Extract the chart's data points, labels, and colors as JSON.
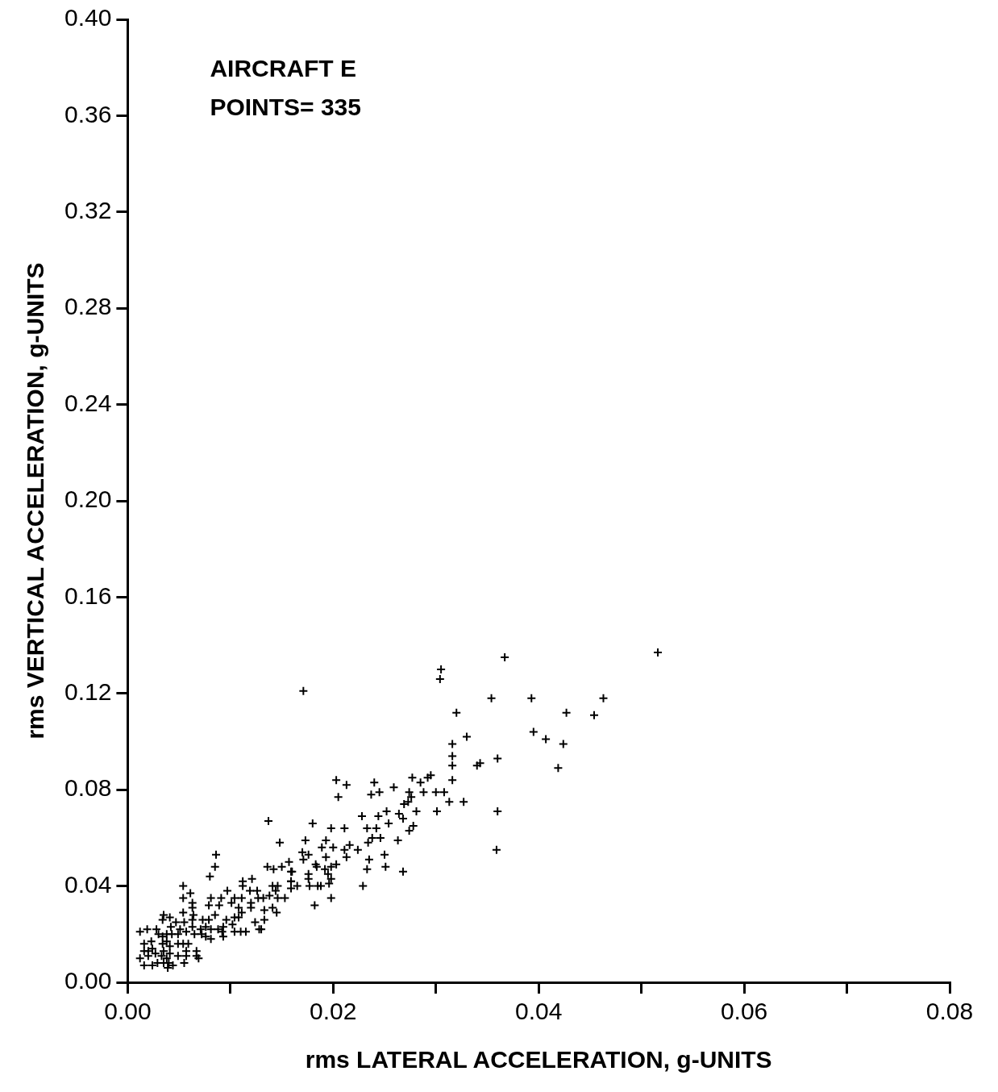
{
  "chart_data": {
    "type": "scatter",
    "xlabel": "rms LATERAL ACCELERATION, g-UNITS",
    "ylabel": "rms VERTICAL ACCELERATION, g-UNITS",
    "annotations": [
      "AIRCRAFT E",
      "POINTS= 335"
    ],
    "xlim": [
      0,
      0.08
    ],
    "ylim": [
      0,
      0.4
    ],
    "xticks": [
      {
        "value": 0,
        "label": "0.00"
      },
      {
        "value": 0.01,
        "label": null
      },
      {
        "value": 0.02,
        "label": "0.02"
      },
      {
        "value": 0.03,
        "label": null
      },
      {
        "value": 0.04,
        "label": "0.04"
      },
      {
        "value": 0.05,
        "label": null
      },
      {
        "value": 0.06,
        "label": "0.06"
      },
      {
        "value": 0.07,
        "label": null
      },
      {
        "value": 0.08,
        "label": "0.08"
      }
    ],
    "yticks": [
      {
        "value": 0,
        "label": "0.00"
      },
      {
        "value": 0.04,
        "label": "0.04"
      },
      {
        "value": 0.08,
        "label": "0.08"
      },
      {
        "value": 0.12,
        "label": "0.12"
      },
      {
        "value": 0.16,
        "label": "0.16"
      },
      {
        "value": 0.2,
        "label": "0.20"
      },
      {
        "value": 0.24,
        "label": "0.24"
      },
      {
        "value": 0.28,
        "label": "0.28"
      },
      {
        "value": 0.32,
        "label": "0.32"
      },
      {
        "value": 0.36,
        "label": "0.36"
      },
      {
        "value": 0.4,
        "label": "0.40"
      }
    ],
    "grid": false,
    "legend": false,
    "marker": "cross",
    "series": [
      {
        "color": "#000000",
        "x": [
          0.0367,
          0.0516,
          0.0305,
          0.0304,
          0.0354,
          0.0393,
          0.0463,
          0.032,
          0.0427,
          0.0454,
          0.033,
          0.0395,
          0.0407,
          0.0424,
          0.0316,
          0.0316,
          0.0316,
          0.034,
          0.0343,
          0.036,
          0.0419,
          0.0316,
          0.0277,
          0.0285,
          0.0292,
          0.0295,
          0.0171,
          0.0359,
          0.036,
          0.0327,
          0.0313,
          0.0301,
          0.03,
          0.0203,
          0.0213,
          0.0205,
          0.024,
          0.0237,
          0.0245,
          0.0259,
          0.0274,
          0.0288,
          0.0308,
          0.0276,
          0.0269,
          0.0273,
          0.0281,
          0.0252,
          0.0264,
          0.0228,
          0.0244,
          0.0268,
          0.0254,
          0.0278,
          0.0274,
          0.0233,
          0.0242,
          0.018,
          0.0198,
          0.0211,
          0.0238,
          0.0246,
          0.0173,
          0.0193,
          0.0263,
          0.0234,
          0.0216,
          0.0189,
          0.02,
          0.0224,
          0.017,
          0.0211,
          0.0176,
          0.0213,
          0.0193,
          0.025,
          0.0235,
          0.0171,
          0.0157,
          0.0183,
          0.0184,
          0.0192,
          0.0198,
          0.0203,
          0.0251,
          0.0233,
          0.0268,
          0.016,
          0.0195,
          0.0198,
          0.0176,
          0.0176,
          0.0196,
          0.0165,
          0.0185,
          0.0177,
          0.0188,
          0.0229,
          0.0159,
          0.0159,
          0.0198,
          0.0182,
          0.0085,
          0.008,
          0.0054,
          0.0061,
          0.0054,
          0.0112,
          0.0121,
          0.0112,
          0.0097,
          0.0119,
          0.0126,
          0.0136,
          0.0142,
          0.015,
          0.0159,
          0.0159,
          0.0141,
          0.0146,
          0.0144,
          0.0138,
          0.0146,
          0.0153,
          0.0132,
          0.0127,
          0.012,
          0.0081,
          0.0091,
          0.0104,
          0.0111,
          0.0063,
          0.0101,
          0.0063,
          0.0079,
          0.0108,
          0.0089,
          0.0054,
          0.0064,
          0.0111,
          0.012,
          0.0133,
          0.0141,
          0.0145,
          0.0108,
          0.0104,
          0.0035,
          0.0041,
          0.0034,
          0.0063,
          0.0073,
          0.0079,
          0.0085,
          0.0096,
          0.0102,
          0.0124,
          0.0133,
          0.013,
          0.0128,
          0.0047,
          0.0055,
          0.0042,
          0.0051,
          0.0063,
          0.0071,
          0.0076,
          0.0081,
          0.0088,
          0.0093,
          0.0104,
          0.011,
          0.0115,
          0.0092,
          0.0093,
          0.0012,
          0.0019,
          0.0028,
          0.003,
          0.0034,
          0.0038,
          0.0043,
          0.0049,
          0.0057,
          0.0065,
          0.0072,
          0.0076,
          0.0081,
          0.0016,
          0.0023,
          0.0016,
          0.002,
          0.0024,
          0.0027,
          0.0034,
          0.0038,
          0.0041,
          0.0035,
          0.0041,
          0.0049,
          0.0054,
          0.0059,
          0.0057,
          0.0049,
          0.002,
          0.0012,
          0.0033,
          0.0038,
          0.0067,
          0.0067,
          0.0069,
          0.0057,
          0.0016,
          0.0024,
          0.0029,
          0.0035,
          0.004,
          0.0039,
          0.0044,
          0.0055,
          0.0137,
          0.0086,
          0.0148
        ],
        "values": [
          0.135,
          0.137,
          0.13,
          0.126,
          0.118,
          0.118,
          0.118,
          0.112,
          0.112,
          0.111,
          0.102,
          0.104,
          0.101,
          0.099,
          0.099,
          0.094,
          0.09,
          0.09,
          0.091,
          0.093,
          0.089,
          0.084,
          0.085,
          0.083,
          0.085,
          0.086,
          0.121,
          0.055,
          0.071,
          0.075,
          0.075,
          0.071,
          0.079,
          0.084,
          0.082,
          0.077,
          0.083,
          0.078,
          0.079,
          0.081,
          0.079,
          0.079,
          0.079,
          0.077,
          0.074,
          0.075,
          0.071,
          0.071,
          0.07,
          0.069,
          0.069,
          0.068,
          0.066,
          0.065,
          0.063,
          0.064,
          0.064,
          0.066,
          0.064,
          0.064,
          0.06,
          0.06,
          0.059,
          0.059,
          0.059,
          0.058,
          0.057,
          0.056,
          0.056,
          0.055,
          0.054,
          0.055,
          0.053,
          0.052,
          0.052,
          0.053,
          0.051,
          0.051,
          0.05,
          0.049,
          0.048,
          0.047,
          0.048,
          0.049,
          0.048,
          0.047,
          0.046,
          0.046,
          0.045,
          0.043,
          0.045,
          0.043,
          0.041,
          0.04,
          0.04,
          0.04,
          0.04,
          0.04,
          0.042,
          0.039,
          0.035,
          0.032,
          0.048,
          0.044,
          0.04,
          0.037,
          0.035,
          0.042,
          0.043,
          0.04,
          0.038,
          0.038,
          0.038,
          0.048,
          0.047,
          0.048,
          0.046,
          0.042,
          0.04,
          0.04,
          0.038,
          0.036,
          0.035,
          0.035,
          0.035,
          0.035,
          0.033,
          0.035,
          0.035,
          0.035,
          0.035,
          0.033,
          0.033,
          0.031,
          0.032,
          0.031,
          0.032,
          0.029,
          0.028,
          0.029,
          0.031,
          0.03,
          0.031,
          0.029,
          0.027,
          0.027,
          0.028,
          0.027,
          0.026,
          0.026,
          0.026,
          0.026,
          0.028,
          0.026,
          0.024,
          0.025,
          0.026,
          0.022,
          0.022,
          0.025,
          0.025,
          0.023,
          0.022,
          0.023,
          0.022,
          0.023,
          0.022,
          0.022,
          0.023,
          0.021,
          0.021,
          0.021,
          0.021,
          0.019,
          0.021,
          0.022,
          0.022,
          0.02,
          0.019,
          0.02,
          0.02,
          0.02,
          0.021,
          0.02,
          0.02,
          0.019,
          0.018,
          0.016,
          0.017,
          0.013,
          0.013,
          0.014,
          0.012,
          0.016,
          0.017,
          0.015,
          0.013,
          0.012,
          0.016,
          0.016,
          0.016,
          0.013,
          0.011,
          0.011,
          0.01,
          0.011,
          0.01,
          0.013,
          0.011,
          0.01,
          0.011,
          0.007,
          0.007,
          0.008,
          0.008,
          0.008,
          0.006,
          0.007,
          0.008,
          0.067,
          0.053,
          0.058
        ]
      }
    ]
  }
}
